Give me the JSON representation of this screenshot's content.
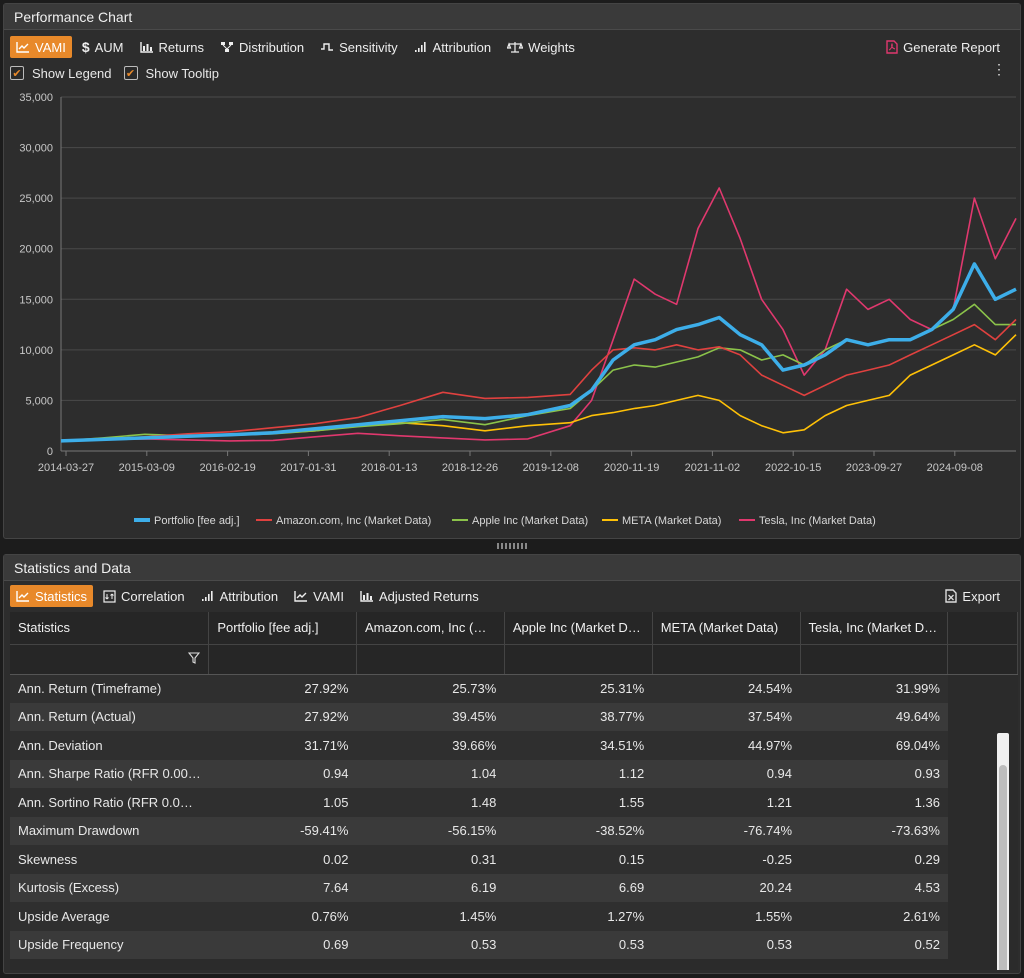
{
  "panel1": {
    "title": "Performance Chart"
  },
  "toolbar1": {
    "tabs": [
      {
        "label": "VAMI",
        "icon": "line-chart-icon",
        "active": true
      },
      {
        "label": "AUM",
        "icon": "dollar-icon"
      },
      {
        "label": "Returns",
        "icon": "bar-chart-icon"
      },
      {
        "label": "Distribution",
        "icon": "distribution-icon"
      },
      {
        "label": "Sensitivity",
        "icon": "sensitivity-icon"
      },
      {
        "label": "Attribution",
        "icon": "attribution-icon"
      },
      {
        "label": "Weights",
        "icon": "scale-icon"
      }
    ],
    "generate_report": "Generate Report",
    "show_legend": "Show Legend",
    "show_tooltip": "Show Tooltip"
  },
  "chart_data": {
    "type": "line",
    "ylim": [
      0,
      35000
    ],
    "yticks": [
      "0",
      "5,000",
      "10,000",
      "15,000",
      "20,000",
      "25,000",
      "30,000",
      "35,000"
    ],
    "xticks": [
      "2014-03-27",
      "2015-03-09",
      "2016-02-19",
      "2017-01-31",
      "2018-01-13",
      "2018-12-26",
      "2019-12-08",
      "2020-11-19",
      "2021-11-02",
      "2022-10-15",
      "2023-09-27",
      "2024-09-08"
    ],
    "x": [
      "2014-03",
      "2014-09",
      "2015-03",
      "2015-09",
      "2016-03",
      "2016-09",
      "2017-03",
      "2017-09",
      "2018-03",
      "2018-09",
      "2019-03",
      "2019-09",
      "2020-03",
      "2020-06",
      "2020-09",
      "2020-12",
      "2021-03",
      "2021-06",
      "2021-09",
      "2021-12",
      "2022-03",
      "2022-06",
      "2022-09",
      "2022-12",
      "2023-03",
      "2023-06",
      "2023-09",
      "2023-12",
      "2024-03",
      "2024-06",
      "2024-09",
      "2024-12",
      "2025-03",
      "2025-06"
    ],
    "series": [
      {
        "name": "Portfolio [fee adj.]",
        "color": "#3daee9",
        "width": 3.5,
        "values": [
          1000,
          1150,
          1300,
          1450,
          1600,
          1800,
          2200,
          2600,
          3000,
          3400,
          3200,
          3600,
          4500,
          6000,
          9000,
          10500,
          11000,
          12000,
          12500,
          13200,
          11500,
          10500,
          8000,
          8500,
          9500,
          11000,
          10500,
          11000,
          11000,
          12000,
          14000,
          18500,
          15000,
          16000
        ]
      },
      {
        "name": "Amazon.com, Inc (Market Data)",
        "color": "#e0413f",
        "width": 1.6,
        "values": [
          1000,
          1100,
          1400,
          1700,
          1900,
          2300,
          2700,
          3300,
          4500,
          5800,
          5200,
          5300,
          5600,
          8000,
          10000,
          10200,
          10000,
          10500,
          10000,
          10300,
          9500,
          7500,
          6500,
          5500,
          6500,
          7500,
          8000,
          8500,
          9500,
          10500,
          11500,
          12500,
          11000,
          13000
        ]
      },
      {
        "name": "Apple Inc (Market Data)",
        "color": "#8bc34a",
        "width": 1.6,
        "values": [
          1000,
          1300,
          1650,
          1500,
          1550,
          1700,
          2000,
          2400,
          2700,
          3100,
          2600,
          3500,
          4200,
          6000,
          8000,
          8500,
          8300,
          8800,
          9300,
          10200,
          10000,
          9000,
          9500,
          8500,
          10000,
          11000,
          10500,
          11000,
          11000,
          12000,
          13000,
          14500,
          12500,
          12500
        ]
      },
      {
        "name": "META (Market Data)",
        "color": "#ffc107",
        "width": 1.6,
        "values": [
          1000,
          1200,
          1300,
          1500,
          1600,
          1750,
          2000,
          2500,
          2800,
          2500,
          2000,
          2500,
          2800,
          3500,
          3800,
          4200,
          4500,
          5000,
          5500,
          5000,
          3500,
          2500,
          1800,
          2100,
          3500,
          4500,
          5000,
          5500,
          7500,
          8500,
          9500,
          10500,
          9500,
          11500
        ]
      },
      {
        "name": "Tesla, Inc (Market Data)",
        "color": "#e0386e",
        "width": 1.6,
        "values": [
          1000,
          1150,
          1200,
          1100,
          1000,
          1050,
          1400,
          1750,
          1500,
          1300,
          1100,
          1200,
          2500,
          5000,
          11000,
          17000,
          15500,
          14500,
          22000,
          26000,
          21000,
          15000,
          12000,
          7500,
          10000,
          16000,
          14000,
          15000,
          13000,
          12000,
          14000,
          25000,
          19000,
          23000
        ]
      }
    ]
  },
  "panel2": {
    "title": "Statistics and Data"
  },
  "toolbar2": {
    "tabs": [
      {
        "label": "Statistics",
        "icon": "line-chart-icon",
        "active": true
      },
      {
        "label": "Correlation",
        "icon": "correlation-icon"
      },
      {
        "label": "Attribution",
        "icon": "attribution-icon"
      },
      {
        "label": "VAMI",
        "icon": "line-chart-icon"
      },
      {
        "label": "Adjusted Returns",
        "icon": "bar-chart-icon"
      }
    ],
    "export": "Export"
  },
  "table": {
    "columns": [
      "Statistics",
      "Portfolio [fee adj.]",
      "Amazon.com, Inc (…",
      "Apple Inc (Market D…",
      "META (Market Data)",
      "Tesla, Inc (Market D…"
    ],
    "rows": [
      [
        "Ann. Return (Timeframe)",
        "27.92%",
        "25.73%",
        "25.31%",
        "24.54%",
        "31.99%"
      ],
      [
        "Ann. Return (Actual)",
        "27.92%",
        "39.45%",
        "38.77%",
        "37.54%",
        "49.64%"
      ],
      [
        "Ann. Deviation",
        "31.71%",
        "39.66%",
        "34.51%",
        "44.97%",
        "69.04%"
      ],
      [
        "Ann. Sharpe Ratio (RFR 0.00…",
        "0.94",
        "1.04",
        "1.12",
        "0.94",
        "0.93"
      ],
      [
        "Ann. Sortino Ratio (RFR 0.0…",
        "1.05",
        "1.48",
        "1.55",
        "1.21",
        "1.36"
      ],
      [
        "Maximum Drawdown",
        "-59.41%",
        "-56.15%",
        "-38.52%",
        "-76.74%",
        "-73.63%"
      ],
      [
        "Skewness",
        "0.02",
        "0.31",
        "0.15",
        "-0.25",
        "0.29"
      ],
      [
        "Kurtosis (Excess)",
        "7.64",
        "6.19",
        "6.69",
        "20.24",
        "4.53"
      ],
      [
        "Upside Average",
        "0.76%",
        "1.45%",
        "1.27%",
        "1.55%",
        "2.61%"
      ],
      [
        "Upside Frequency",
        "0.69",
        "0.53",
        "0.53",
        "0.53",
        "0.52"
      ]
    ]
  }
}
